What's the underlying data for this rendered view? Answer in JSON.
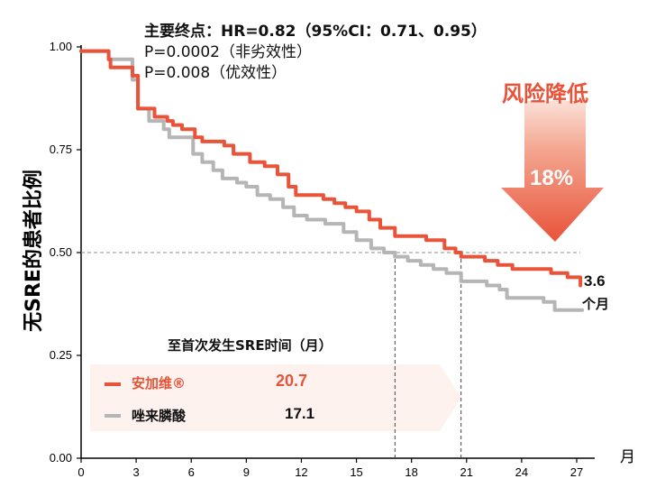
{
  "header": {
    "line1": "主要终点：HR=0.82（95%CI：0.71、0.95）",
    "line2": "P=0.0002（非劣效性）",
    "line3": "P=0.008（优效性）"
  },
  "risk": {
    "title": "风险降低",
    "value": "18%"
  },
  "legend": {
    "title": "至首次发生SRE时间（月）",
    "entries": [
      {
        "label": "安加维®",
        "value": "20.7",
        "color": "#e8533a"
      },
      {
        "label": "唑来膦酸",
        "value": "17.1",
        "color": "#b5b5b5"
      }
    ]
  },
  "annotation": {
    "diff_value": "3.6",
    "diff_unit": "个月"
  },
  "colors": {
    "accent": "#e8533a",
    "comparator": "#b5b5b5",
    "axis": "#000000",
    "reference": "#8c8c8c",
    "legend_band": "#fdf2ee"
  },
  "chart_data": {
    "type": "line",
    "ylabel": "无SRE的患者比例",
    "xlabel": "月",
    "xlim": [
      0,
      27.5
    ],
    "ylim": [
      0,
      1.0
    ],
    "x_ticks": [
      "0",
      "3",
      "6",
      "9",
      "12",
      "15",
      "18",
      "21",
      "24",
      "27"
    ],
    "y_ticks": [
      "0.00",
      "0.25",
      "0.50",
      "0.75",
      "1.00"
    ],
    "reference_lines": {
      "y": 0.5,
      "x": [
        17.1,
        20.7
      ]
    },
    "series": [
      {
        "name": "安加维®",
        "color": "#e8533a",
        "points": [
          [
            0,
            0.99
          ],
          [
            1.5,
            0.97
          ],
          [
            1.6,
            0.95
          ],
          [
            2.8,
            0.93
          ],
          [
            3.1,
            0.85
          ],
          [
            4,
            0.83
          ],
          [
            4.7,
            0.82
          ],
          [
            5,
            0.81
          ],
          [
            5.5,
            0.8
          ],
          [
            5.9,
            0.8
          ],
          [
            6.2,
            0.78
          ],
          [
            6.6,
            0.77
          ],
          [
            7.8,
            0.76
          ],
          [
            8.3,
            0.74
          ],
          [
            9.2,
            0.72
          ],
          [
            10,
            0.71
          ],
          [
            10.7,
            0.69
          ],
          [
            11.3,
            0.66
          ],
          [
            11.7,
            0.64
          ],
          [
            12.3,
            0.64
          ],
          [
            13.2,
            0.63
          ],
          [
            13.8,
            0.62
          ],
          [
            14.4,
            0.61
          ],
          [
            15,
            0.6
          ],
          [
            15.7,
            0.58
          ],
          [
            16.3,
            0.56
          ],
          [
            17.1,
            0.54
          ],
          [
            17.6,
            0.54
          ],
          [
            18.8,
            0.53
          ],
          [
            19.3,
            0.53
          ],
          [
            19.8,
            0.51
          ],
          [
            20.4,
            0.5
          ],
          [
            20.7,
            0.49
          ],
          [
            22,
            0.48
          ],
          [
            22.7,
            0.47
          ],
          [
            23.5,
            0.46
          ],
          [
            24.5,
            0.46
          ],
          [
            25.6,
            0.45
          ],
          [
            26.5,
            0.44
          ],
          [
            27.2,
            0.42
          ]
        ]
      },
      {
        "name": "唑来膦酸",
        "color": "#b5b5b5",
        "points": [
          [
            0,
            0.99
          ],
          [
            1.5,
            0.97
          ],
          [
            2.8,
            0.92
          ],
          [
            3.1,
            0.85
          ],
          [
            3.7,
            0.82
          ],
          [
            4.5,
            0.8
          ],
          [
            4.8,
            0.78
          ],
          [
            5.8,
            0.78
          ],
          [
            6.1,
            0.74
          ],
          [
            6.6,
            0.72
          ],
          [
            7.2,
            0.7
          ],
          [
            7.7,
            0.68
          ],
          [
            8.5,
            0.67
          ],
          [
            9,
            0.66
          ],
          [
            9.6,
            0.64
          ],
          [
            10.3,
            0.63
          ],
          [
            11,
            0.61
          ],
          [
            11.6,
            0.59
          ],
          [
            12.3,
            0.58
          ],
          [
            13.3,
            0.57
          ],
          [
            14.3,
            0.55
          ],
          [
            15,
            0.53
          ],
          [
            15.8,
            0.51
          ],
          [
            16.5,
            0.5
          ],
          [
            17.1,
            0.49
          ],
          [
            17.8,
            0.48
          ],
          [
            18.5,
            0.47
          ],
          [
            19.2,
            0.46
          ],
          [
            19.9,
            0.45
          ],
          [
            20.7,
            0.43
          ],
          [
            21.4,
            0.43
          ],
          [
            22.1,
            0.42
          ],
          [
            22.8,
            0.41
          ],
          [
            23.2,
            0.39
          ],
          [
            24.4,
            0.39
          ],
          [
            25.2,
            0.38
          ],
          [
            25.8,
            0.36
          ],
          [
            26.5,
            0.36
          ],
          [
            27.3,
            0.36
          ]
        ]
      }
    ]
  }
}
